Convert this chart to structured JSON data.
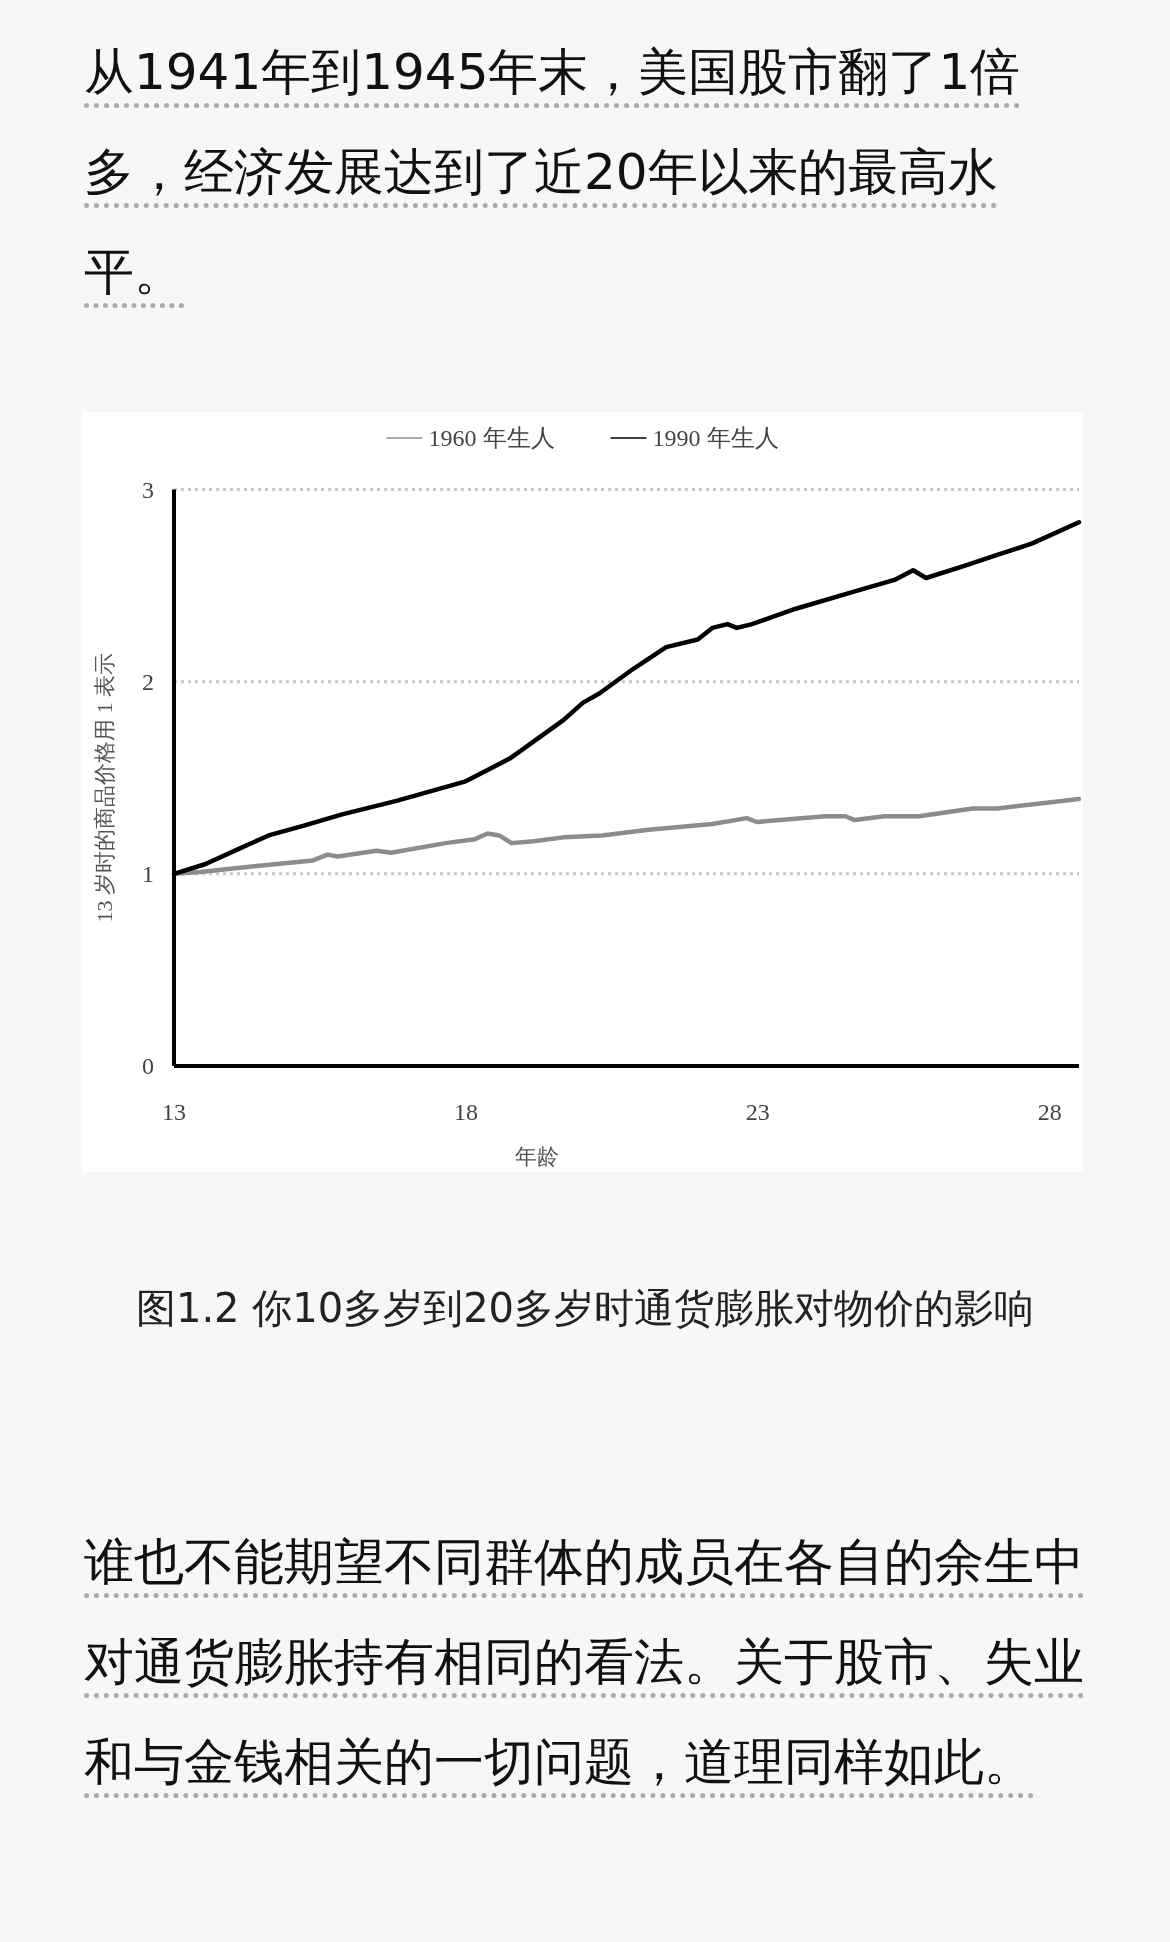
{
  "chart_data": {
    "type": "line",
    "title": "图1.2 你10多岁到20多岁时通货膨胀对物价的影响",
    "annotations": [
      "从1941年到1945年末，美国股市翻了1倍多，经济发展达到了近20年以来的最高水平。",
      "谁也不能期望不同群体的成员在各自的余生中对通货膨胀持有相同的看法。关于股市、失业和与金钱相关的一切问题，道理同样如此。"
    ],
    "xlabel": "年龄",
    "ylabel": "13 岁时的商品价格用 1 表示",
    "xlim": [
      13,
      28.5
    ],
    "xticks": [
      13,
      18,
      23,
      28
    ],
    "ylim": [
      0,
      3
    ],
    "yticks": [
      0,
      1,
      2,
      3
    ],
    "grid": "y",
    "legend": "top",
    "series": [
      {
        "name": "1960 年生人",
        "color": "#8c8c8c",
        "x": [
          13,
          13.45,
          14.37,
          15.38,
          15.63,
          15.8,
          16.47,
          16.72,
          17.65,
          18.15,
          18.37,
          18.57,
          18.78,
          19.16,
          19.67,
          20.33,
          21.13,
          22.22,
          22.81,
          22.98,
          24.16,
          24.5,
          24.66,
          25.17,
          25.76,
          26.68,
          27.1,
          28.5
        ],
        "values": [
          1.0,
          1.01,
          1.04,
          1.07,
          1.1,
          1.09,
          1.12,
          1.11,
          1.16,
          1.18,
          1.21,
          1.2,
          1.16,
          1.17,
          1.19,
          1.2,
          1.23,
          1.26,
          1.29,
          1.27,
          1.3,
          1.3,
          1.28,
          1.3,
          1.3,
          1.34,
          1.34,
          1.39
        ]
      },
      {
        "name": "1990 年生人",
        "color": "#000000",
        "x": [
          13,
          13.53,
          14.11,
          14.62,
          15.21,
          15.88,
          16.81,
          17.98,
          18.75,
          19.67,
          20.0,
          20.29,
          20.88,
          21.43,
          21.97,
          22.22,
          22.48,
          22.64,
          22.9,
          23.65,
          24.66,
          25.34,
          25.66,
          25.88,
          26.51,
          27.1,
          27.7,
          28.5
        ],
        "values": [
          1.0,
          1.05,
          1.13,
          1.2,
          1.25,
          1.31,
          1.38,
          1.48,
          1.6,
          1.8,
          1.89,
          1.94,
          2.07,
          2.18,
          2.22,
          2.28,
          2.3,
          2.28,
          2.3,
          2.38,
          2.47,
          2.53,
          2.58,
          2.54,
          2.6,
          2.66,
          2.72,
          2.83
        ]
      }
    ]
  }
}
